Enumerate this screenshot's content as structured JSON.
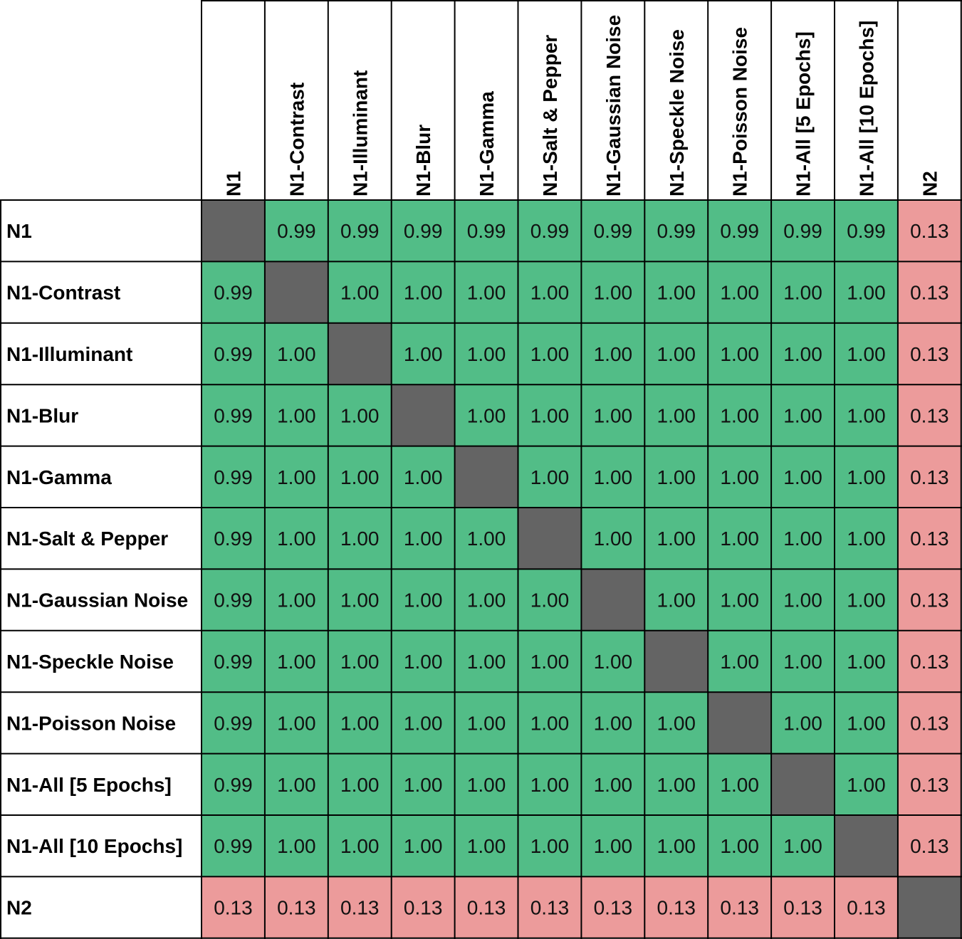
{
  "chart_data": {
    "type": "heatmap",
    "labels": [
      "N1",
      "N1-Contrast",
      "N1-Illuminant",
      "N1-Blur",
      "N1-Gamma",
      "N1-Salt & Pepper",
      "N1-Gaussian Noise",
      "N1-Speckle Noise",
      "N1-Poisson Noise",
      "N1-All [5 Epochs]",
      "N1-All [10 Epochs]",
      "N2"
    ],
    "values": [
      [
        null,
        0.99,
        0.99,
        0.99,
        0.99,
        0.99,
        0.99,
        0.99,
        0.99,
        0.99,
        0.99,
        0.13
      ],
      [
        0.99,
        null,
        1.0,
        1.0,
        1.0,
        1.0,
        1.0,
        1.0,
        1.0,
        1.0,
        1.0,
        0.13
      ],
      [
        0.99,
        1.0,
        null,
        1.0,
        1.0,
        1.0,
        1.0,
        1.0,
        1.0,
        1.0,
        1.0,
        0.13
      ],
      [
        0.99,
        1.0,
        1.0,
        null,
        1.0,
        1.0,
        1.0,
        1.0,
        1.0,
        1.0,
        1.0,
        0.13
      ],
      [
        0.99,
        1.0,
        1.0,
        1.0,
        null,
        1.0,
        1.0,
        1.0,
        1.0,
        1.0,
        1.0,
        0.13
      ],
      [
        0.99,
        1.0,
        1.0,
        1.0,
        1.0,
        null,
        1.0,
        1.0,
        1.0,
        1.0,
        1.0,
        0.13
      ],
      [
        0.99,
        1.0,
        1.0,
        1.0,
        1.0,
        1.0,
        null,
        1.0,
        1.0,
        1.0,
        1.0,
        0.13
      ],
      [
        0.99,
        1.0,
        1.0,
        1.0,
        1.0,
        1.0,
        1.0,
        null,
        1.0,
        1.0,
        1.0,
        0.13
      ],
      [
        0.99,
        1.0,
        1.0,
        1.0,
        1.0,
        1.0,
        1.0,
        1.0,
        null,
        1.0,
        1.0,
        0.13
      ],
      [
        0.99,
        1.0,
        1.0,
        1.0,
        1.0,
        1.0,
        1.0,
        1.0,
        1.0,
        null,
        1.0,
        0.13
      ],
      [
        0.99,
        1.0,
        1.0,
        1.0,
        1.0,
        1.0,
        1.0,
        1.0,
        1.0,
        1.0,
        null,
        0.13
      ],
      [
        0.13,
        0.13,
        0.13,
        0.13,
        0.13,
        0.13,
        0.13,
        0.13,
        0.13,
        0.13,
        0.13,
        null
      ]
    ],
    "colors": {
      "high": "#52bd87",
      "low": "#ec9b9b",
      "diagonal": "#646464",
      "border": "#000000",
      "header_bg": "#ffffff"
    },
    "high_threshold": 0.5
  }
}
